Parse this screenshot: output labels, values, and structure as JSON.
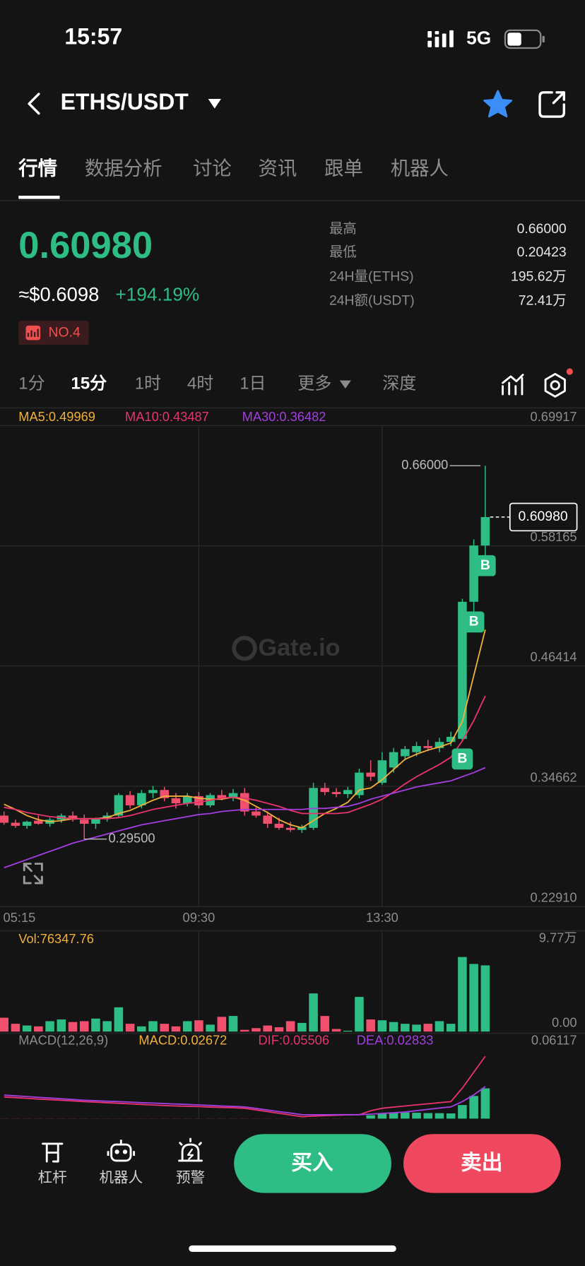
{
  "status_bar": {
    "time": "15:57",
    "network": "5G"
  },
  "header": {
    "pair": "ETHS/USDT"
  },
  "tabs": [
    "行情",
    "数据分析",
    "讨论",
    "资讯",
    "跟单",
    "机器人"
  ],
  "ticker": {
    "price": "0.60980",
    "usd_price": "≈$0.6098",
    "change": "+194.19%",
    "rank": "NO.4",
    "stats": [
      {
        "label": "最高",
        "value": "0.66000"
      },
      {
        "label": "最低",
        "value": "0.20423"
      },
      {
        "label": "24H量(ETHS)",
        "value": "195.62万"
      },
      {
        "label": "24H额(USDT)",
        "value": "72.41万"
      }
    ]
  },
  "intervals": [
    "1分",
    "15分",
    "1时",
    "4时",
    "1日",
    "更多",
    "深度"
  ],
  "chart_data": [
    {
      "type": "candlestick",
      "watermark": "Gate.io",
      "categories": [
        "05:15",
        null,
        null,
        null,
        null,
        null,
        null,
        null,
        null,
        null,
        null,
        null,
        null,
        null,
        null,
        null,
        null,
        "09:30",
        null,
        null,
        null,
        null,
        null,
        null,
        null,
        null,
        null,
        null,
        null,
        null,
        null,
        null,
        null,
        "13:30",
        null,
        null,
        null,
        null,
        null,
        null,
        null,
        null,
        null
      ],
      "open": [
        0.318,
        0.311,
        0.308,
        0.313,
        0.31,
        0.314,
        0.318,
        0.314,
        0.31,
        0.315,
        0.318,
        0.338,
        0.328,
        0.34,
        0.343,
        0.335,
        0.33,
        0.337,
        0.328,
        0.338,
        0.335,
        0.34,
        0.322,
        0.318,
        0.31,
        0.306,
        0.304,
        0.306,
        0.345,
        0.341,
        0.339,
        0.338,
        0.36,
        0.35,
        0.365,
        0.376,
        0.38,
        0.386,
        0.384,
        0.39,
        0.393,
        0.527,
        0.582
      ],
      "high": [
        0.322,
        0.314,
        0.313,
        0.318,
        0.316,
        0.32,
        0.322,
        0.319,
        0.316,
        0.321,
        0.34,
        0.342,
        0.343,
        0.347,
        0.346,
        0.34,
        0.34,
        0.341,
        0.34,
        0.343,
        0.344,
        0.345,
        0.326,
        0.322,
        0.316,
        0.312,
        0.309,
        0.35,
        0.35,
        0.345,
        0.346,
        0.364,
        0.372,
        0.38,
        0.384,
        0.386,
        0.39,
        0.392,
        0.394,
        0.4,
        0.53,
        0.588,
        0.66
      ],
      "low": [
        0.309,
        0.306,
        0.305,
        0.309,
        0.307,
        0.311,
        0.312,
        0.295,
        0.305,
        0.312,
        0.316,
        0.325,
        0.325,
        0.335,
        0.332,
        0.325,
        0.327,
        0.325,
        0.326,
        0.333,
        0.332,
        0.318,
        0.316,
        0.306,
        0.304,
        0.302,
        0.301,
        0.304,
        0.338,
        0.336,
        0.335,
        0.335,
        0.352,
        0.348,
        0.36,
        0.372,
        0.376,
        0.381,
        0.38,
        0.386,
        0.39,
        0.515,
        0.57
      ],
      "close": [
        0.311,
        0.308,
        0.312,
        0.31,
        0.314,
        0.318,
        0.314,
        0.31,
        0.315,
        0.318,
        0.338,
        0.328,
        0.34,
        0.343,
        0.335,
        0.33,
        0.337,
        0.328,
        0.338,
        0.335,
        0.34,
        0.322,
        0.318,
        0.31,
        0.306,
        0.304,
        0.307,
        0.345,
        0.341,
        0.339,
        0.343,
        0.36,
        0.356,
        0.372,
        0.38,
        0.383,
        0.386,
        0.384,
        0.39,
        0.395,
        0.527,
        0.582,
        0.6098
      ],
      "up_color": "#2ebd85",
      "down_color": "#f0506e",
      "series": [
        {
          "name": "MA5:0.49969",
          "color": "#f0b03c",
          "values": [
            0.329,
            0.324,
            0.318,
            0.314,
            0.312,
            0.313,
            0.315,
            0.315,
            0.315,
            0.316,
            0.32,
            0.323,
            0.328,
            0.333,
            0.337,
            0.337,
            0.337,
            0.335,
            0.334,
            0.334,
            0.336,
            0.333,
            0.327,
            0.321,
            0.314,
            0.309,
            0.306,
            0.313,
            0.32,
            0.325,
            0.331,
            0.343,
            0.345,
            0.353,
            0.363,
            0.373,
            0.378,
            0.382,
            0.385,
            0.389,
            0.41,
            0.455,
            0.49969
          ]
        },
        {
          "name": "MA10:0.43487",
          "color": "#e8336d",
          "values": [
            0.326,
            0.324,
            0.321,
            0.319,
            0.317,
            0.316,
            0.315,
            0.315,
            0.315,
            0.315,
            0.316,
            0.318,
            0.321,
            0.324,
            0.326,
            0.328,
            0.33,
            0.331,
            0.333,
            0.335,
            0.336,
            0.335,
            0.333,
            0.33,
            0.327,
            0.323,
            0.32,
            0.32,
            0.32,
            0.32,
            0.321,
            0.325,
            0.329,
            0.334,
            0.341,
            0.349,
            0.356,
            0.362,
            0.368,
            0.375,
            0.391,
            0.411,
            0.43487
          ]
        },
        {
          "name": "MA30:0.36482",
          "color": "#a33ee0",
          "values": [
            0.267,
            0.271,
            0.275,
            0.279,
            0.283,
            0.287,
            0.291,
            0.294,
            0.297,
            0.3,
            0.303,
            0.306,
            0.309,
            0.311,
            0.313,
            0.315,
            0.317,
            0.319,
            0.32,
            0.322,
            0.323,
            0.324,
            0.324,
            0.324,
            0.324,
            0.324,
            0.324,
            0.325,
            0.325,
            0.326,
            0.327,
            0.33,
            0.334,
            0.337,
            0.34,
            0.343,
            0.346,
            0.348,
            0.35,
            0.352,
            0.356,
            0.36,
            0.36482
          ]
        }
      ],
      "ylim": [
        0.2291,
        0.69917
      ],
      "yticks": [
        0.69917,
        0.58165,
        0.46414,
        0.34662,
        {
          "value": 0.2291,
          "label": "0.22910"
        }
      ],
      "grid": true,
      "annotations": {
        "high": {
          "value": 0.66,
          "label": "0.66000",
          "at": 42
        },
        "low": {
          "value": 0.295,
          "label": "0.29500",
          "at": 7
        },
        "last": {
          "value": 0.6098,
          "label": "0.60980"
        }
      },
      "markers": [
        {
          "at": 40,
          "text": "B"
        },
        {
          "at": 41,
          "text": "B"
        },
        {
          "at": 42,
          "text": "B"
        }
      ]
    },
    {
      "type": "bar",
      "title": "Vol:76347.76",
      "color": "#f0b03c",
      "values": [
        16000,
        9000,
        7000,
        6000,
        12000,
        14000,
        11000,
        12000,
        15000,
        12000,
        28000,
        9000,
        6000,
        12000,
        9000,
        6000,
        12000,
        13000,
        8000,
        17000,
        18000,
        2000,
        4000,
        7000,
        5000,
        12000,
        10000,
        44000,
        18000,
        3000,
        1000,
        40000,
        14000,
        13000,
        11000,
        9000,
        8000,
        9000,
        12000,
        9000,
        86000,
        78000,
        76347.76
      ],
      "ylim": [
        0,
        97700
      ],
      "yticks": [
        {
          "value": 97700,
          "label": "9.77万"
        },
        {
          "value": 0,
          "label": "0.00"
        }
      ]
    },
    {
      "type": "macd",
      "title": "MACD(12,26,9)",
      "series": [
        {
          "name": "MACD:0.02672",
          "color": "#f0b03c",
          "values": [
            -0.0017,
            -0.0016,
            -0.0016,
            -0.0015,
            -0.0015,
            -0.0013,
            -0.0013,
            -0.0012,
            -0.0013,
            -0.0014,
            -0.0015,
            -0.0016,
            -0.0016,
            -0.0017,
            -0.0018,
            -0.0017,
            -0.0016,
            -0.0015,
            -0.0015,
            -0.0013,
            -0.0012,
            -0.0012,
            -0.0013,
            -0.0014,
            -0.0015,
            -0.0017,
            -0.0018,
            -0.0012,
            -0.0008,
            -0.0005,
            -0.0002,
            0,
            0.003,
            0.0046,
            0.005,
            0.0054,
            0.0052,
            0.0049,
            0.0048,
            0.0046,
            0.012,
            0.02,
            0.02672
          ]
        },
        {
          "name": "DIF:0.05506",
          "color": "#e8336d",
          "values": [
            0.0191,
            0.0185,
            0.0179,
            0.0173,
            0.0167,
            0.0162,
            0.0156,
            0.015,
            0.0145,
            0.014,
            0.0135,
            0.013,
            0.0125,
            0.012,
            0.0115,
            0.0112,
            0.0109,
            0.0106,
            0.0102,
            0.0099,
            0.0096,
            0.0092,
            0.0077,
            0.0062,
            0.0047,
            0.0032,
            0.0017,
            0.0022,
            0.0026,
            0.003,
            0.0033,
            0.0035,
            0.007,
            0.0092,
            0.0102,
            0.0112,
            0.0122,
            0.0131,
            0.0141,
            0.015,
            0.027,
            0.041,
            0.05506
          ]
        },
        {
          "name": "DEA:0.02833",
          "color": "#a33ee0",
          "values": [
            0.0208,
            0.0201,
            0.0195,
            0.0188,
            0.0182,
            0.0175,
            0.0169,
            0.0162,
            0.0158,
            0.0154,
            0.015,
            0.0146,
            0.0141,
            0.0137,
            0.0133,
            0.0129,
            0.0125,
            0.0121,
            0.0117,
            0.0112,
            0.0108,
            0.0104,
            0.009,
            0.0076,
            0.0062,
            0.0049,
            0.0035,
            0.0034,
            0.0034,
            0.0035,
            0.0035,
            0.0035,
            0.004,
            0.0046,
            0.0052,
            0.0058,
            0.007,
            0.0082,
            0.0093,
            0.0104,
            0.015,
            0.021,
            0.02833
          ]
        }
      ],
      "ylim": [
        -0.03,
        0.06117
      ],
      "yticks": [
        0.06117
      ]
    }
  ],
  "toolbar": [
    "杠杆",
    "机器人",
    "预警"
  ],
  "buy": "买入",
  "sell": "卖出"
}
